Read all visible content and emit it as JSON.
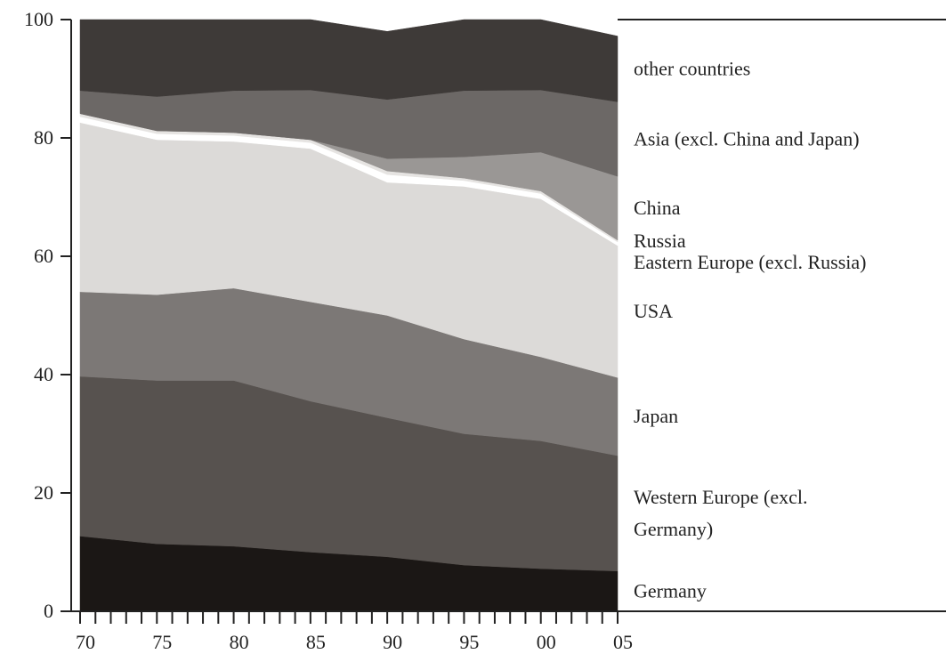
{
  "chart_data": {
    "type": "area",
    "stacked": true,
    "x": [
      1970,
      1975,
      1980,
      1985,
      1990,
      1995,
      2000,
      2005
    ],
    "x_tick_labels": [
      "70",
      "75",
      "80",
      "85",
      "90",
      "95",
      "00",
      "05"
    ],
    "y_tick_labels": [
      "0",
      "20",
      "40",
      "60",
      "80",
      "100"
    ],
    "ylim": [
      0,
      100
    ],
    "xlim": [
      1970,
      2005
    ],
    "grid": false,
    "legend": "right",
    "series": [
      {
        "name": "Germany",
        "color": "#1b1715",
        "values": [
          12.7,
          11.4,
          11.0,
          10.0,
          9.2,
          7.8,
          7.2,
          6.8
        ]
      },
      {
        "name": "Western Europe (excl. Germany)",
        "color": "#57524f",
        "values": [
          27.0,
          27.6,
          28.0,
          25.5,
          23.5,
          22.2,
          21.6,
          19.5
        ]
      },
      {
        "name": "Japan",
        "color": "#7c7876",
        "values": [
          14.3,
          14.5,
          15.6,
          16.8,
          17.3,
          16.0,
          14.2,
          13.2
        ]
      },
      {
        "name": "USA",
        "color": "#dcdad8",
        "values": [
          28.6,
          26.2,
          24.8,
          25.9,
          22.5,
          25.8,
          26.7,
          22.3
        ]
      },
      {
        "name": "Eastern Europe (excl. Russia)",
        "color": "#ffffff",
        "values": [
          1.0,
          1.0,
          1.0,
          1.0,
          1.3,
          1.0,
          0.9,
          0.6
        ]
      },
      {
        "name": "Russia",
        "color": "#e6e4e2",
        "values": [
          0.5,
          0.5,
          0.5,
          0.5,
          0.6,
          0.4,
          0.4,
          0.3
        ]
      },
      {
        "name": "China",
        "color": "#9a9795",
        "values": [
          0.0,
          0.0,
          0.0,
          0.0,
          2.1,
          3.6,
          6.6,
          10.8
        ]
      },
      {
        "name": "Asia (excl. China and Japan)",
        "color": "#6c6866",
        "values": [
          3.9,
          5.8,
          7.1,
          8.4,
          10.0,
          11.2,
          10.5,
          12.6
        ]
      },
      {
        "name": "other countries",
        "color": "#3e3a38",
        "values": [
          12.0,
          13.0,
          12.0,
          11.9,
          11.5,
          12.0,
          11.9,
          11.1
        ]
      }
    ],
    "legend_lines": [
      {
        "series": "other countries",
        "lines": [
          "other countries"
        ]
      },
      {
        "series": "Asia (excl. China and Japan)",
        "lines": [
          "Asia (excl. China and Japan)"
        ]
      },
      {
        "series": "China",
        "lines": [
          "China"
        ]
      },
      {
        "series": "Russia",
        "lines": [
          "Russia"
        ]
      },
      {
        "series": "Eastern Europe (excl. Russia)",
        "lines": [
          "Eastern Europe (excl. Russia)"
        ]
      },
      {
        "series": "USA",
        "lines": [
          "USA"
        ]
      },
      {
        "series": "Japan",
        "lines": [
          "Japan"
        ]
      },
      {
        "series": "Western Europe (excl. Germany)",
        "lines": [
          "Western Europe (excl.",
          "Germany)"
        ]
      },
      {
        "series": "Germany",
        "lines": [
          "Germany"
        ]
      }
    ]
  }
}
